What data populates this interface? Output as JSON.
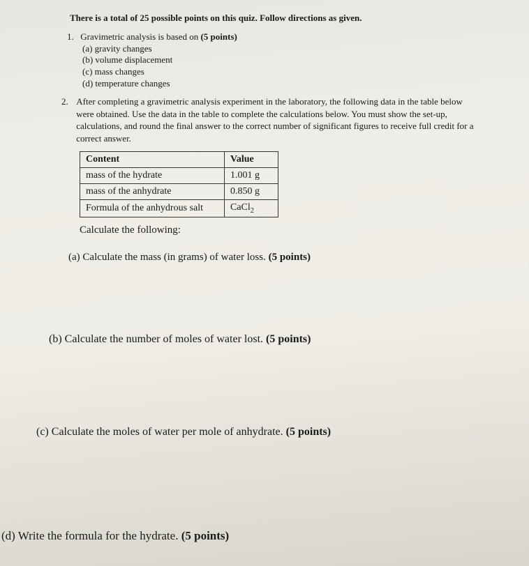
{
  "header": "There is a total of 25 possible points on this quiz. Follow directions as given.",
  "q1": {
    "num": "1.",
    "stem": "Gravimetric analysis is based on ",
    "points": "(5 points)",
    "opts": {
      "a": "(a) gravity changes",
      "b": "(b) volume displacement",
      "c": "(c) mass changes",
      "d": "(d) temperature changes"
    }
  },
  "q2": {
    "num": "2.",
    "body": "After completing a gravimetric analysis experiment in the laboratory, the following data in the table below were obtained. Use the data in the table to complete the calculations below. You must show the set-up, calculations, and round the final answer to the correct number of significant figures to receive full credit for a correct answer.",
    "table": {
      "headers": {
        "c1": "Content",
        "c2": "Value"
      },
      "rows": [
        {
          "c1": "mass of the hydrate",
          "c2": "1.001 g"
        },
        {
          "c1": "mass of the anhydrate",
          "c2": "0.850 g"
        },
        {
          "c1": "Formula of the anhydrous salt",
          "c2": "CaCl"
        }
      ],
      "formula_sub": "2"
    },
    "calc": "Calculate the following:",
    "parts": {
      "a": {
        "label": "(a)",
        "text": "Calculate the mass (in grams) of water loss. ",
        "pts": "(5 points)"
      },
      "b": {
        "label": "(b)",
        "text": "Calculate the number of moles of water lost. ",
        "pts": "(5 points)"
      },
      "c": {
        "label": "(c)",
        "text": "Calculate the moles of water per mole of anhydrate. ",
        "pts": "(5 points)"
      },
      "d": {
        "label": "(d)",
        "text": "Write the formula for the hydrate. ",
        "pts": "(5 points)"
      }
    }
  }
}
